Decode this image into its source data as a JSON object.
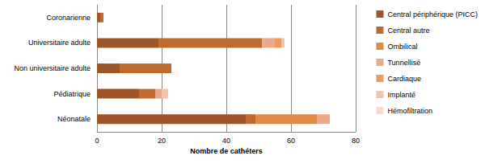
{
  "chart_data": {
    "type": "bar",
    "orientation": "horizontal",
    "stacked": true,
    "grid": true,
    "legend": "right",
    "x_label": "Nombre de cathéters",
    "categories": [
      "Coronarienne",
      "Universitaire adulte",
      "Non universitaire adulte",
      "Pédiatrique",
      "Néonatale"
    ],
    "series": [
      {
        "name": "Central périphérique (PICC)",
        "color": "#9e5528",
        "values": [
          1,
          19,
          7,
          13,
          46
        ]
      },
      {
        "name": "Central autre",
        "color": "#c06a30",
        "values": [
          1,
          32,
          16,
          5,
          3
        ]
      },
      {
        "name": "Ombilical",
        "color": "#e08a44",
        "values": [
          0,
          0,
          0,
          0,
          19
        ]
      },
      {
        "name": "Tunnellisé",
        "color": "#eea98a",
        "values": [
          0,
          4,
          0,
          2,
          4
        ]
      },
      {
        "name": "Cardiaque",
        "color": "#f09a58",
        "values": [
          0,
          2,
          0,
          0,
          0
        ]
      },
      {
        "name": "Implanté",
        "color": "#f5c4a8",
        "values": [
          0,
          1,
          0,
          2,
          0
        ]
      },
      {
        "name": "Hémofiltration",
        "color": "#f9dccb",
        "values": [
          0,
          0,
          0,
          0,
          0
        ]
      }
    ],
    "xlim": [
      0,
      80
    ],
    "xticks": [
      0,
      20,
      40,
      60,
      80
    ]
  }
}
